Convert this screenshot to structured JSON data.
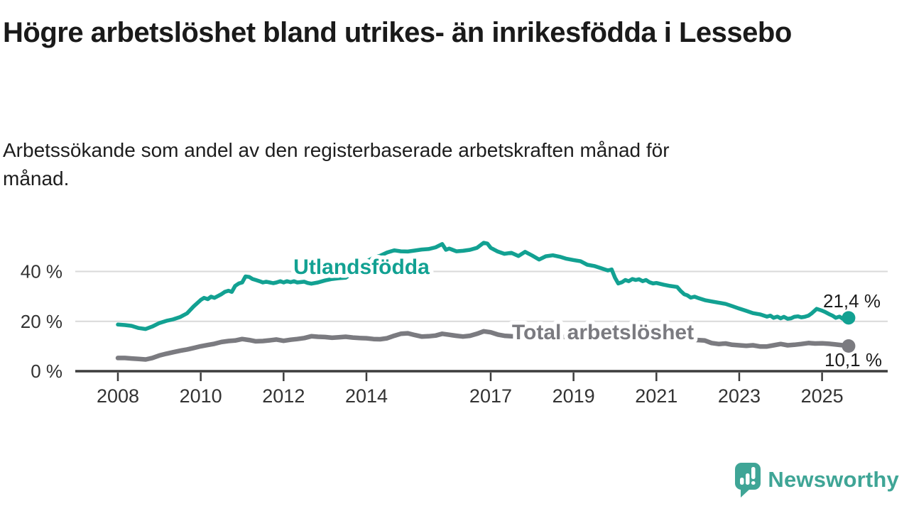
{
  "header": {
    "title": "Högre arbetslöshet bland utrikes- än inrikesfödda i Lessebo",
    "subtitle": "Arbetssökande som andel av den registerbaserade arbetskraften månad för månad."
  },
  "footer": {
    "brand": "Newsworthy",
    "logo_icon": "speech-bubble-bar-chart",
    "brand_color": "#3fa596"
  },
  "chart_data": {
    "type": "line",
    "title": "",
    "xlabel": "",
    "ylabel": "",
    "x_axis": {
      "ticks": [
        2008,
        2010,
        2012,
        2014,
        2017,
        2019,
        2021,
        2023,
        2025
      ],
      "range": [
        2007.0,
        2026.6
      ]
    },
    "y_axis": {
      "ticks": [
        0,
        20,
        40
      ],
      "tick_suffix": " %",
      "range": [
        0,
        55
      ],
      "gridlines": true
    },
    "colors": {
      "grid": "#d9d9d9",
      "axis": "#3d3d3d",
      "tick_text": "#333333",
      "value_text": "#1d1d1d"
    },
    "legend_position": "inline-labels",
    "series": [
      {
        "name": "Utlandsfödda",
        "color": "#12a192",
        "line_width": 5.5,
        "end_value": 21.4,
        "end_label": "21,4 %",
        "points": [
          [
            2008.0,
            18.7
          ],
          [
            2008.17,
            18.5
          ],
          [
            2008.33,
            18.2
          ],
          [
            2008.5,
            17.3
          ],
          [
            2008.67,
            16.9
          ],
          [
            2008.83,
            17.9
          ],
          [
            2009.0,
            19.3
          ],
          [
            2009.17,
            20.2
          ],
          [
            2009.33,
            20.8
          ],
          [
            2009.5,
            21.7
          ],
          [
            2009.67,
            23.2
          ],
          [
            2009.83,
            26.0
          ],
          [
            2010.0,
            28.6
          ],
          [
            2010.08,
            29.4
          ],
          [
            2010.17,
            28.9
          ],
          [
            2010.25,
            29.9
          ],
          [
            2010.33,
            29.4
          ],
          [
            2010.42,
            30.2
          ],
          [
            2010.5,
            30.9
          ],
          [
            2010.58,
            31.8
          ],
          [
            2010.67,
            32.3
          ],
          [
            2010.75,
            31.8
          ],
          [
            2010.83,
            34.2
          ],
          [
            2010.92,
            35.2
          ],
          [
            2011.0,
            35.6
          ],
          [
            2011.08,
            38.0
          ],
          [
            2011.17,
            37.8
          ],
          [
            2011.25,
            37.0
          ],
          [
            2011.33,
            36.6
          ],
          [
            2011.42,
            36.1
          ],
          [
            2011.5,
            35.6
          ],
          [
            2011.58,
            35.9
          ],
          [
            2011.67,
            35.6
          ],
          [
            2011.75,
            35.3
          ],
          [
            2011.83,
            35.6
          ],
          [
            2011.92,
            36.1
          ],
          [
            2012.0,
            35.6
          ],
          [
            2012.08,
            36.1
          ],
          [
            2012.17,
            35.7
          ],
          [
            2012.25,
            36.1
          ],
          [
            2012.33,
            35.6
          ],
          [
            2012.5,
            35.9
          ],
          [
            2012.58,
            35.4
          ],
          [
            2012.67,
            35.1
          ],
          [
            2012.83,
            35.6
          ],
          [
            2013.0,
            36.4
          ],
          [
            2013.17,
            37.0
          ],
          [
            2013.33,
            37.3
          ],
          [
            2013.5,
            37.5
          ],
          [
            2013.67,
            39.5
          ],
          [
            2013.83,
            42.0
          ],
          [
            2014.0,
            44.0
          ],
          [
            2014.17,
            45.5
          ],
          [
            2014.33,
            46.3
          ],
          [
            2014.5,
            47.6
          ],
          [
            2014.67,
            48.5
          ],
          [
            2014.83,
            48.1
          ],
          [
            2015.0,
            48.0
          ],
          [
            2015.17,
            48.4
          ],
          [
            2015.33,
            48.8
          ],
          [
            2015.5,
            49.0
          ],
          [
            2015.67,
            49.7
          ],
          [
            2015.83,
            51.0
          ],
          [
            2015.92,
            48.7
          ],
          [
            2016.0,
            49.2
          ],
          [
            2016.17,
            48.1
          ],
          [
            2016.33,
            48.3
          ],
          [
            2016.5,
            48.7
          ],
          [
            2016.67,
            49.5
          ],
          [
            2016.83,
            51.5
          ],
          [
            2016.92,
            51.2
          ],
          [
            2017.0,
            49.5
          ],
          [
            2017.17,
            48.0
          ],
          [
            2017.33,
            47.1
          ],
          [
            2017.5,
            47.5
          ],
          [
            2017.67,
            46.2
          ],
          [
            2017.83,
            47.9
          ],
          [
            2018.0,
            46.4
          ],
          [
            2018.17,
            44.8
          ],
          [
            2018.33,
            46.1
          ],
          [
            2018.5,
            46.5
          ],
          [
            2018.67,
            45.9
          ],
          [
            2018.83,
            45.1
          ],
          [
            2019.0,
            44.6
          ],
          [
            2019.17,
            44.1
          ],
          [
            2019.33,
            42.7
          ],
          [
            2019.5,
            42.2
          ],
          [
            2019.67,
            41.3
          ],
          [
            2019.83,
            40.4
          ],
          [
            2019.92,
            40.8
          ],
          [
            2020.0,
            37.5
          ],
          [
            2020.08,
            35.2
          ],
          [
            2020.17,
            35.7
          ],
          [
            2020.25,
            36.6
          ],
          [
            2020.33,
            36.1
          ],
          [
            2020.42,
            37.0
          ],
          [
            2020.5,
            36.6
          ],
          [
            2020.58,
            36.9
          ],
          [
            2020.67,
            36.1
          ],
          [
            2020.75,
            36.6
          ],
          [
            2020.83,
            35.7
          ],
          [
            2020.92,
            35.2
          ],
          [
            2021.0,
            35.4
          ],
          [
            2021.17,
            34.7
          ],
          [
            2021.33,
            34.2
          ],
          [
            2021.5,
            33.8
          ],
          [
            2021.58,
            32.3
          ],
          [
            2021.67,
            30.9
          ],
          [
            2021.75,
            30.4
          ],
          [
            2021.83,
            29.5
          ],
          [
            2021.92,
            29.9
          ],
          [
            2022.0,
            29.4
          ],
          [
            2022.08,
            29.0
          ],
          [
            2022.17,
            28.5
          ],
          [
            2022.33,
            28.0
          ],
          [
            2022.5,
            27.5
          ],
          [
            2022.67,
            27.0
          ],
          [
            2022.83,
            26.1
          ],
          [
            2023.0,
            25.1
          ],
          [
            2023.17,
            24.2
          ],
          [
            2023.33,
            23.3
          ],
          [
            2023.5,
            22.8
          ],
          [
            2023.67,
            21.9
          ],
          [
            2023.75,
            22.3
          ],
          [
            2023.83,
            21.4
          ],
          [
            2023.92,
            21.9
          ],
          [
            2024.0,
            21.2
          ],
          [
            2024.08,
            21.8
          ],
          [
            2024.17,
            21.0
          ],
          [
            2024.25,
            21.2
          ],
          [
            2024.33,
            21.8
          ],
          [
            2024.42,
            22.0
          ],
          [
            2024.5,
            21.6
          ],
          [
            2024.58,
            21.8
          ],
          [
            2024.67,
            22.3
          ],
          [
            2024.75,
            23.2
          ],
          [
            2024.87,
            25.0
          ],
          [
            2025.0,
            24.3
          ],
          [
            2025.08,
            23.7
          ],
          [
            2025.17,
            22.9
          ],
          [
            2025.25,
            22.3
          ],
          [
            2025.33,
            21.4
          ],
          [
            2025.42,
            21.9
          ],
          [
            2025.5,
            21.0
          ],
          [
            2025.64,
            21.4
          ]
        ]
      },
      {
        "name": "Total arbetslöshet",
        "color": "#7b7b80",
        "line_width": 6.5,
        "end_value": 10.1,
        "end_label": "10,1 %",
        "points": [
          [
            2008.0,
            5.3
          ],
          [
            2008.17,
            5.3
          ],
          [
            2008.33,
            5.1
          ],
          [
            2008.5,
            4.9
          ],
          [
            2008.67,
            4.7
          ],
          [
            2008.83,
            5.3
          ],
          [
            2009.0,
            6.3
          ],
          [
            2009.17,
            7.0
          ],
          [
            2009.33,
            7.6
          ],
          [
            2009.5,
            8.2
          ],
          [
            2009.67,
            8.7
          ],
          [
            2009.83,
            9.3
          ],
          [
            2010.0,
            10.0
          ],
          [
            2010.17,
            10.5
          ],
          [
            2010.33,
            11.0
          ],
          [
            2010.5,
            11.7
          ],
          [
            2010.67,
            12.1
          ],
          [
            2010.83,
            12.3
          ],
          [
            2011.0,
            12.9
          ],
          [
            2011.17,
            12.5
          ],
          [
            2011.33,
            12.0
          ],
          [
            2011.5,
            12.1
          ],
          [
            2011.67,
            12.4
          ],
          [
            2011.83,
            12.7
          ],
          [
            2012.0,
            12.2
          ],
          [
            2012.17,
            12.6
          ],
          [
            2012.33,
            12.9
          ],
          [
            2012.5,
            13.3
          ],
          [
            2012.67,
            14.0
          ],
          [
            2012.83,
            13.8
          ],
          [
            2013.0,
            13.7
          ],
          [
            2013.17,
            13.4
          ],
          [
            2013.33,
            13.6
          ],
          [
            2013.5,
            13.8
          ],
          [
            2013.67,
            13.5
          ],
          [
            2013.83,
            13.3
          ],
          [
            2014.0,
            13.2
          ],
          [
            2014.17,
            12.9
          ],
          [
            2014.33,
            12.8
          ],
          [
            2014.5,
            13.2
          ],
          [
            2014.67,
            14.2
          ],
          [
            2014.83,
            15.0
          ],
          [
            2015.0,
            15.2
          ],
          [
            2015.17,
            14.5
          ],
          [
            2015.33,
            13.9
          ],
          [
            2015.5,
            14.0
          ],
          [
            2015.67,
            14.3
          ],
          [
            2015.83,
            15.0
          ],
          [
            2016.0,
            14.6
          ],
          [
            2016.17,
            14.2
          ],
          [
            2016.33,
            13.9
          ],
          [
            2016.5,
            14.2
          ],
          [
            2016.67,
            15.0
          ],
          [
            2016.83,
            16.0
          ],
          [
            2017.0,
            15.6
          ],
          [
            2017.17,
            14.7
          ],
          [
            2017.33,
            14.2
          ],
          [
            2017.5,
            14.0
          ],
          [
            2017.83,
            13.9
          ],
          [
            2018.17,
            13.8
          ],
          [
            2018.5,
            13.9
          ],
          [
            2018.83,
            13.7
          ],
          [
            2019.17,
            13.6
          ],
          [
            2019.5,
            13.4
          ],
          [
            2019.83,
            13.5
          ],
          [
            2020.17,
            13.6
          ],
          [
            2020.5,
            13.8
          ],
          [
            2020.83,
            13.6
          ],
          [
            2021.0,
            13.4
          ],
          [
            2021.33,
            13.1
          ],
          [
            2021.67,
            12.8
          ],
          [
            2022.0,
            12.5
          ],
          [
            2022.17,
            12.3
          ],
          [
            2022.33,
            11.3
          ],
          [
            2022.5,
            10.9
          ],
          [
            2022.67,
            11.1
          ],
          [
            2022.83,
            10.6
          ],
          [
            2023.0,
            10.4
          ],
          [
            2023.17,
            10.2
          ],
          [
            2023.33,
            10.4
          ],
          [
            2023.5,
            9.9
          ],
          [
            2023.67,
            9.9
          ],
          [
            2023.83,
            10.4
          ],
          [
            2024.0,
            10.9
          ],
          [
            2024.17,
            10.4
          ],
          [
            2024.33,
            10.6
          ],
          [
            2024.5,
            10.9
          ],
          [
            2024.67,
            11.3
          ],
          [
            2024.83,
            11.1
          ],
          [
            2025.0,
            11.2
          ],
          [
            2025.17,
            11.0
          ],
          [
            2025.33,
            10.7
          ],
          [
            2025.5,
            10.4
          ],
          [
            2025.64,
            10.1
          ]
        ]
      }
    ]
  }
}
